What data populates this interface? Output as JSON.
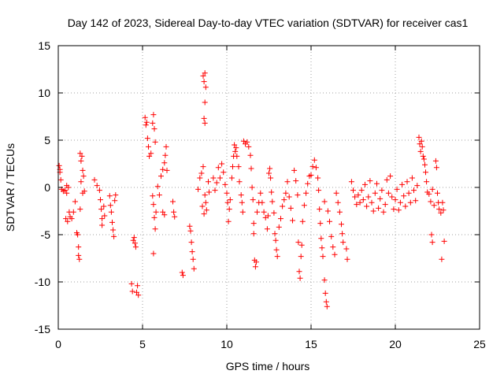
{
  "chart_data": {
    "type": "scatter",
    "title": "Day 142 of 2023, Sidereal Day-to-day VTEC variation (SDTVAR) for receiver cas1",
    "xlabel": "GPS time / hours",
    "ylabel": "SDTVAR / TECUs",
    "xlim": [
      0,
      25
    ],
    "ylim": [
      -15,
      15
    ],
    "xticks": [
      "0",
      "5",
      "10",
      "15",
      "20",
      "25"
    ],
    "yticks": [
      "15",
      "10",
      "5",
      "0",
      "-5",
      "-10",
      "-15"
    ],
    "grid": true,
    "marker": "+",
    "color": "#ff0000",
    "series": [
      {
        "name": "SDTVAR",
        "points": [
          [
            0.05,
            2.3
          ],
          [
            0.1,
            1.6
          ],
          [
            0.15,
            0.8
          ],
          [
            0.2,
            -0.2
          ],
          [
            0.1,
            1.9
          ],
          [
            0.3,
            -0.4
          ],
          [
            0.4,
            -0.3
          ],
          [
            0.5,
            -0.6
          ],
          [
            0.45,
            -3.3
          ],
          [
            0.55,
            -3.6
          ],
          [
            0.5,
            0.2
          ],
          [
            0.6,
            0.0
          ],
          [
            0.65,
            -2.6
          ],
          [
            0.7,
            -3.1
          ],
          [
            0.8,
            -3.3
          ],
          [
            0.9,
            -2.6
          ],
          [
            1.0,
            -1.5
          ],
          [
            1.1,
            -4.8
          ],
          [
            1.15,
            -5.0
          ],
          [
            1.2,
            -6.3
          ],
          [
            1.2,
            -7.2
          ],
          [
            1.25,
            -7.6
          ],
          [
            1.3,
            -2.3
          ],
          [
            1.3,
            3.6
          ],
          [
            1.35,
            2.8
          ],
          [
            1.4,
            3.3
          ],
          [
            1.45,
            1.8
          ],
          [
            1.5,
            1.2
          ],
          [
            1.55,
            -0.4
          ],
          [
            1.35,
            0.6
          ],
          [
            1.45,
            -0.6
          ],
          [
            2.15,
            0.8
          ],
          [
            2.3,
            0.2
          ],
          [
            2.45,
            -0.3
          ],
          [
            2.5,
            -1.3
          ],
          [
            2.55,
            -2.3
          ],
          [
            2.6,
            -3.3
          ],
          [
            2.6,
            -4.0
          ],
          [
            2.7,
            -2.0
          ],
          [
            2.75,
            -3.0
          ],
          [
            3.05,
            -0.9
          ],
          [
            3.1,
            -1.9
          ],
          [
            3.15,
            -2.6
          ],
          [
            3.2,
            -3.7
          ],
          [
            3.25,
            -4.5
          ],
          [
            3.3,
            -5.2
          ],
          [
            3.35,
            -1.4
          ],
          [
            3.4,
            -0.8
          ],
          [
            4.35,
            -10.2
          ],
          [
            4.4,
            -11.0
          ],
          [
            4.5,
            -5.3
          ],
          [
            4.55,
            -5.9
          ],
          [
            4.6,
            -6.3
          ],
          [
            4.65,
            -11.1
          ],
          [
            4.7,
            -10.4
          ],
          [
            4.75,
            -11.4
          ],
          [
            4.45,
            -5.6
          ],
          [
            5.15,
            7.4
          ],
          [
            5.2,
            6.6
          ],
          [
            5.25,
            6.9
          ],
          [
            5.3,
            5.2
          ],
          [
            5.35,
            4.3
          ],
          [
            5.4,
            3.3
          ],
          [
            5.5,
            3.6
          ],
          [
            5.6,
            6.8
          ],
          [
            5.65,
            7.7
          ],
          [
            5.7,
            6.2
          ],
          [
            5.75,
            4.8
          ],
          [
            5.6,
            -0.9
          ],
          [
            5.65,
            -1.8
          ],
          [
            5.7,
            -3.2
          ],
          [
            5.75,
            -4.4
          ],
          [
            5.65,
            -7.0
          ],
          [
            5.8,
            -2.6
          ],
          [
            5.9,
            0.1
          ],
          [
            6.0,
            -0.8
          ],
          [
            6.1,
            1.2
          ],
          [
            6.2,
            1.9
          ],
          [
            6.3,
            2.6
          ],
          [
            6.35,
            3.4
          ],
          [
            6.4,
            4.3
          ],
          [
            6.45,
            1.8
          ],
          [
            6.2,
            -2.6
          ],
          [
            6.3,
            -2.9
          ],
          [
            6.8,
            -1.5
          ],
          [
            6.85,
            -2.6
          ],
          [
            6.9,
            -3.1
          ],
          [
            7.35,
            -9.0
          ],
          [
            7.4,
            -9.3
          ],
          [
            7.8,
            -4.1
          ],
          [
            7.85,
            -4.6
          ],
          [
            7.9,
            -5.8
          ],
          [
            7.95,
            -6.8
          ],
          [
            8.0,
            -7.6
          ],
          [
            8.05,
            -8.6
          ],
          [
            8.3,
            -0.2
          ],
          [
            8.4,
            1.0
          ],
          [
            8.5,
            1.5
          ],
          [
            8.6,
            2.2
          ],
          [
            8.7,
            -0.8
          ],
          [
            8.8,
            -2.4
          ],
          [
            8.55,
            -2.0
          ],
          [
            8.65,
            -2.8
          ],
          [
            8.75,
            -1.6
          ],
          [
            8.9,
            0.6
          ],
          [
            8.95,
            -0.5
          ],
          [
            8.6,
            11.8
          ],
          [
            8.65,
            11.2
          ],
          [
            8.7,
            12.1
          ],
          [
            8.75,
            10.6
          ],
          [
            8.7,
            9.0
          ],
          [
            8.65,
            7.3
          ],
          [
            8.7,
            6.8
          ],
          [
            9.2,
            1.0
          ],
          [
            9.3,
            -0.3
          ],
          [
            9.4,
            0.5
          ],
          [
            9.5,
            2.1
          ],
          [
            9.6,
            1.0
          ],
          [
            9.7,
            2.5
          ],
          [
            9.8,
            1.6
          ],
          [
            9.9,
            0.3
          ],
          [
            10.0,
            -0.6
          ],
          [
            10.05,
            -1.6
          ],
          [
            10.1,
            -3.6
          ],
          [
            10.15,
            -2.3
          ],
          [
            10.2,
            -1.3
          ],
          [
            10.3,
            1.0
          ],
          [
            10.35,
            2.2
          ],
          [
            10.4,
            3.3
          ],
          [
            10.45,
            4.5
          ],
          [
            10.5,
            3.8
          ],
          [
            10.55,
            4.2
          ],
          [
            10.6,
            3.3
          ],
          [
            10.7,
            2.2
          ],
          [
            10.75,
            0.6
          ],
          [
            10.85,
            -0.8
          ],
          [
            10.9,
            -1.6
          ],
          [
            10.95,
            -2.6
          ],
          [
            11.0,
            4.9
          ],
          [
            11.1,
            4.6
          ],
          [
            11.2,
            4.8
          ],
          [
            11.3,
            4.3
          ],
          [
            11.4,
            3.4
          ],
          [
            11.45,
            2.0
          ],
          [
            11.5,
            0.0
          ],
          [
            11.55,
            -1.3
          ],
          [
            11.6,
            -4.9
          ],
          [
            11.65,
            -7.7
          ],
          [
            11.7,
            -8.4
          ],
          [
            11.75,
            -7.9
          ],
          [
            11.6,
            -3.8
          ],
          [
            11.8,
            -2.6
          ],
          [
            11.9,
            -1.6
          ],
          [
            12.0,
            -0.6
          ],
          [
            12.1,
            -1.6
          ],
          [
            12.2,
            -2.6
          ],
          [
            12.3,
            -3.2
          ],
          [
            12.4,
            -4.4
          ],
          [
            12.45,
            -3.0
          ],
          [
            12.5,
            1.5
          ],
          [
            12.55,
            2.0
          ],
          [
            12.6,
            1.0
          ],
          [
            12.65,
            -0.5
          ],
          [
            12.7,
            -1.5
          ],
          [
            12.8,
            -2.7
          ],
          [
            12.85,
            -4.9
          ],
          [
            12.9,
            -5.6
          ],
          [
            12.95,
            -6.6
          ],
          [
            13.0,
            -7.3
          ],
          [
            13.1,
            -4.2
          ],
          [
            13.2,
            -3.3
          ],
          [
            13.3,
            -2.0
          ],
          [
            13.4,
            -1.3
          ],
          [
            13.5,
            -0.6
          ],
          [
            13.6,
            0.6
          ],
          [
            13.7,
            -1.0
          ],
          [
            13.8,
            -2.2
          ],
          [
            13.9,
            -3.5
          ],
          [
            14.0,
            1.8
          ],
          [
            14.1,
            0.7
          ],
          [
            14.2,
            -0.8
          ],
          [
            14.25,
            -5.8
          ],
          [
            14.3,
            -8.9
          ],
          [
            14.35,
            -9.6
          ],
          [
            14.4,
            -7.3
          ],
          [
            14.45,
            -6.1
          ],
          [
            14.5,
            -3.6
          ],
          [
            14.6,
            -1.9
          ],
          [
            14.7,
            -0.6
          ],
          [
            14.8,
            0.4
          ],
          [
            14.9,
            1.2
          ],
          [
            15.0,
            1.3
          ],
          [
            15.1,
            2.2
          ],
          [
            15.2,
            2.9
          ],
          [
            15.3,
            2.1
          ],
          [
            15.4,
            1.0
          ],
          [
            15.45,
            -0.3
          ],
          [
            15.5,
            -2.3
          ],
          [
            15.55,
            -3.8
          ],
          [
            15.6,
            -5.4
          ],
          [
            15.65,
            -6.4
          ],
          [
            15.7,
            -7.3
          ],
          [
            15.8,
            -9.8
          ],
          [
            15.85,
            -11.2
          ],
          [
            15.9,
            -12.1
          ],
          [
            15.95,
            -12.6
          ],
          [
            15.8,
            -1.5
          ],
          [
            16.0,
            -2.5
          ],
          [
            16.1,
            -3.6
          ],
          [
            16.2,
            -5.2
          ],
          [
            16.3,
            -6.3
          ],
          [
            16.4,
            -7.1
          ],
          [
            16.5,
            -0.6
          ],
          [
            16.6,
            -1.6
          ],
          [
            16.7,
            -2.6
          ],
          [
            16.8,
            -3.9
          ],
          [
            16.85,
            -4.9
          ],
          [
            16.9,
            -5.8
          ],
          [
            17.1,
            -6.5
          ],
          [
            17.15,
            -7.6
          ],
          [
            17.4,
            0.6
          ],
          [
            17.5,
            -0.3
          ],
          [
            17.6,
            -1.0
          ],
          [
            17.7,
            -1.8
          ],
          [
            17.8,
            -0.8
          ],
          [
            17.9,
            -1.6
          ],
          [
            18.0,
            -0.3
          ],
          [
            18.1,
            -1.3
          ],
          [
            18.2,
            0.3
          ],
          [
            18.3,
            -2.0
          ],
          [
            18.4,
            -1.0
          ],
          [
            18.5,
            0.7
          ],
          [
            18.6,
            -1.6
          ],
          [
            18.7,
            -2.5
          ],
          [
            18.8,
            -0.6
          ],
          [
            18.9,
            0.4
          ],
          [
            19.0,
            -2.2
          ],
          [
            19.1,
            -1.2
          ],
          [
            19.2,
            -0.3
          ],
          [
            19.3,
            -2.6
          ],
          [
            19.4,
            -1.8
          ],
          [
            19.5,
            0.8
          ],
          [
            19.6,
            -0.6
          ],
          [
            19.7,
            1.2
          ],
          [
            19.8,
            -1.0
          ],
          [
            19.9,
            -2.3
          ],
          [
            20.0,
            -1.3
          ],
          [
            20.1,
            -0.2
          ],
          [
            20.2,
            -2.4
          ],
          [
            20.3,
            -1.6
          ],
          [
            20.4,
            0.3
          ],
          [
            20.5,
            -0.9
          ],
          [
            20.6,
            -2.0
          ],
          [
            20.7,
            0.6
          ],
          [
            20.8,
            -0.6
          ],
          [
            20.9,
            -1.6
          ],
          [
            21.0,
            1.0
          ],
          [
            21.1,
            -0.3
          ],
          [
            21.2,
            -1.4
          ],
          [
            21.3,
            0.2
          ],
          [
            21.4,
            5.3
          ],
          [
            21.45,
            4.6
          ],
          [
            21.5,
            3.8
          ],
          [
            21.55,
            4.9
          ],
          [
            21.6,
            4.3
          ],
          [
            21.65,
            3.3
          ],
          [
            21.7,
            3.0
          ],
          [
            21.75,
            2.4
          ],
          [
            21.8,
            1.6
          ],
          [
            21.85,
            0.6
          ],
          [
            21.9,
            -0.5
          ],
          [
            22.0,
            -0.7
          ],
          [
            22.1,
            -1.5
          ],
          [
            22.2,
            -0.2
          ],
          [
            22.3,
            -1.9
          ],
          [
            22.4,
            2.8
          ],
          [
            22.45,
            2.1
          ],
          [
            22.5,
            -0.6
          ],
          [
            22.55,
            -1.6
          ],
          [
            22.6,
            -2.3
          ],
          [
            22.7,
            -2.7
          ],
          [
            22.8,
            -1.6
          ],
          [
            22.85,
            -2.4
          ],
          [
            22.15,
            -5.0
          ],
          [
            22.2,
            -5.8
          ],
          [
            22.75,
            -7.6
          ],
          [
            22.9,
            -5.7
          ]
        ]
      }
    ]
  }
}
